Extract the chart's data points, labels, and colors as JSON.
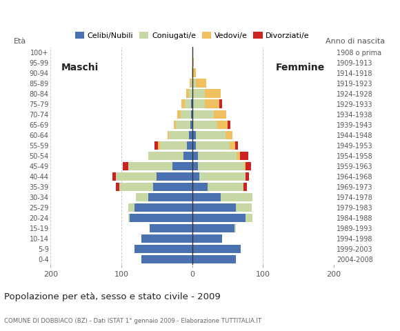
{
  "age_groups": [
    "0-4",
    "5-9",
    "10-14",
    "15-19",
    "20-24",
    "25-29",
    "30-34",
    "35-39",
    "40-44",
    "45-49",
    "50-54",
    "55-59",
    "60-64",
    "65-69",
    "70-74",
    "75-79",
    "80-84",
    "85-89",
    "90-94",
    "95-99",
    "100+"
  ],
  "birth_years": [
    "2004-2008",
    "1999-2003",
    "1994-1998",
    "1989-1993",
    "1984-1988",
    "1979-1983",
    "1974-1978",
    "1969-1973",
    "1964-1968",
    "1959-1963",
    "1954-1958",
    "1949-1953",
    "1944-1948",
    "1939-1943",
    "1934-1938",
    "1929-1933",
    "1924-1928",
    "1919-1923",
    "1914-1918",
    "1909-1913",
    "1908 o prima"
  ],
  "males_celibe": [
    72,
    82,
    72,
    60,
    88,
    82,
    62,
    55,
    50,
    28,
    12,
    8,
    5,
    3,
    2,
    2,
    0,
    0,
    0,
    0,
    0
  ],
  "males_coniugato": [
    0,
    0,
    0,
    0,
    2,
    8,
    18,
    48,
    58,
    62,
    50,
    38,
    28,
    20,
    14,
    8,
    5,
    2,
    1,
    0,
    0
  ],
  "males_vedovo": [
    0,
    0,
    0,
    0,
    0,
    0,
    0,
    0,
    0,
    0,
    0,
    2,
    2,
    3,
    5,
    5,
    4,
    2,
    0,
    0,
    0
  ],
  "males_divorziato": [
    0,
    0,
    0,
    0,
    0,
    0,
    0,
    5,
    5,
    8,
    0,
    5,
    0,
    0,
    0,
    0,
    0,
    0,
    0,
    0,
    0
  ],
  "females_celibe": [
    62,
    68,
    42,
    60,
    75,
    62,
    40,
    22,
    10,
    8,
    8,
    5,
    5,
    0,
    0,
    0,
    0,
    0,
    0,
    0,
    0
  ],
  "females_coniugato": [
    0,
    0,
    0,
    2,
    10,
    22,
    45,
    50,
    65,
    65,
    55,
    48,
    42,
    35,
    30,
    18,
    18,
    5,
    0,
    0,
    0
  ],
  "females_vedovo": [
    0,
    0,
    0,
    0,
    0,
    0,
    0,
    0,
    0,
    2,
    4,
    8,
    10,
    15,
    18,
    20,
    22,
    15,
    5,
    2,
    0
  ],
  "females_divorziato": [
    0,
    0,
    0,
    0,
    0,
    0,
    0,
    5,
    5,
    8,
    12,
    4,
    0,
    4,
    0,
    4,
    0,
    0,
    0,
    0,
    0
  ],
  "color_celibe": "#4b72b0",
  "color_coniugato": "#c8d8a4",
  "color_vedovo": "#f0c060",
  "color_divorziato": "#cc2222",
  "title": "Popolazione per età, sesso e stato civile - 2009",
  "subtitle": "COMUNE DI DOBBIACO (BZ) - Dati ISTAT 1° gennaio 2009 - Elaborazione TUTTITALIA.IT",
  "label_maschi": "Maschi",
  "label_femmine": "Femmine",
  "label_eta": "Età",
  "label_anno": "Anno di nascita",
  "legend_labels": [
    "Celibi/Nubili",
    "Coniugati/e",
    "Vedovi/e",
    "Divorziati/e"
  ],
  "xlim": 200,
  "xticks": [
    -200,
    -100,
    0,
    100,
    200
  ],
  "xtick_labels": [
    "200",
    "100",
    "0",
    "100",
    "200"
  ],
  "grid_color": "#cccccc",
  "bg_color": "#ffffff",
  "bar_height": 0.82
}
